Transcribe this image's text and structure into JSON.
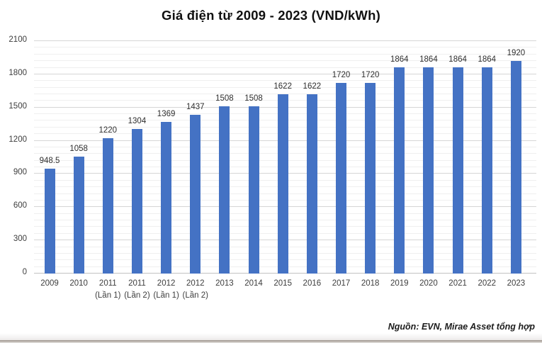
{
  "title": "Giá điện từ 2009 - 2023 (VND/kWh)",
  "source_note": "Nguồn: EVN, Mirae Asset tổng hợp",
  "chart_data": {
    "type": "bar",
    "title": "Giá điện từ 2009 - 2023 (VND/kWh)",
    "categories": [
      "2009",
      "2010",
      "2011",
      "2011",
      "2012",
      "2012",
      "2013",
      "2014",
      "2015",
      "2016",
      "2017",
      "2018",
      "2019",
      "2020",
      "2021",
      "2022",
      "2023"
    ],
    "category_sublabels": [
      "",
      "",
      "(Lần 1)",
      "(Lần 2)",
      "(Lần 1)",
      "(Lần 2)",
      "",
      "",
      "",
      "",
      "",
      "",
      "",
      "",
      "",
      "",
      ""
    ],
    "values": [
      948.5,
      1058,
      1220,
      1304,
      1369,
      1437,
      1508,
      1508,
      1622,
      1622,
      1720,
      1720,
      1864,
      1864,
      1864,
      1864,
      1920
    ],
    "data_labels": [
      "948.5",
      "1058",
      "1220",
      "1304",
      "1369",
      "1437",
      "1508",
      "1508",
      "1622",
      "1622",
      "1720",
      "1720",
      "1864",
      "1864",
      "1864",
      "1864",
      "1920"
    ],
    "xlabel": "",
    "ylabel": "",
    "ylim": [
      0,
      2100
    ],
    "y_major_ticks": [
      0,
      300,
      600,
      900,
      1200,
      1500,
      1800,
      2100
    ],
    "y_minor_step": 60,
    "grid": "major-and-minor",
    "legend": "none",
    "bar_color": "#4472C4",
    "major_gridline_color": "#d6d6d6",
    "minor_gridline_color": "#efefef",
    "label_color": "#2e2e2e",
    "tick_color": "#3d3d3d"
  }
}
